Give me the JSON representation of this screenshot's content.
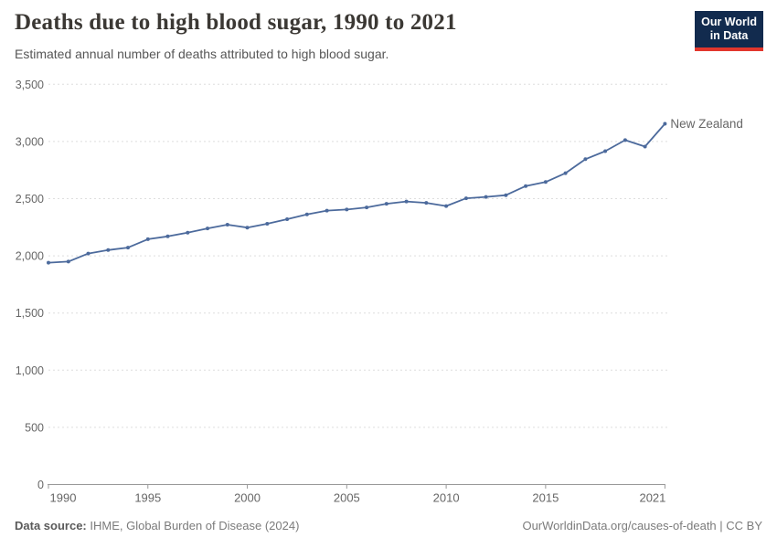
{
  "header": {
    "title": "Deaths due to high blood sugar, 1990 to 2021",
    "subtitle": "Estimated annual number of deaths attributed to high blood sugar."
  },
  "logo": {
    "line1": "Our World",
    "line2": "in Data",
    "bg_color": "#122B4E",
    "stripe_color": "#E2362D"
  },
  "footer": {
    "source_label": "Data source:",
    "source_text": " IHME, Global Burden of Disease (2024)",
    "rights": "OurWorldinData.org/causes-of-death | CC BY"
  },
  "chart_data": {
    "type": "line",
    "title": "Deaths due to high blood sugar, 1990 to 2021",
    "subtitle": "Estimated annual number of deaths attributed to high blood sugar.",
    "xlabel": "",
    "ylabel": "",
    "xlim": [
      1990,
      2021
    ],
    "ylim": [
      0,
      3500
    ],
    "grid": "horizontal-dashed",
    "legend": "end-of-line-label",
    "x": [
      1990,
      1991,
      1992,
      1993,
      1994,
      1995,
      1996,
      1997,
      1998,
      1999,
      2000,
      2001,
      2002,
      2003,
      2004,
      2005,
      2006,
      2007,
      2008,
      2009,
      2010,
      2011,
      2012,
      2013,
      2014,
      2015,
      2016,
      2017,
      2018,
      2019,
      2020,
      2021
    ],
    "series": [
      {
        "name": "New Zealand",
        "color": "#4C6A9C",
        "label_color": "#3E5C9C",
        "values": [
          1940,
          1950,
          2020,
          2050,
          2072,
          2145,
          2170,
          2203,
          2240,
          2272,
          2247,
          2280,
          2320,
          2363,
          2395,
          2405,
          2423,
          2455,
          2475,
          2463,
          2435,
          2503,
          2515,
          2530,
          2610,
          2645,
          2723,
          2845,
          2915,
          3012,
          2955,
          3155
        ]
      }
    ],
    "yticks": [
      {
        "v": 0,
        "label": "0"
      },
      {
        "v": 500,
        "label": "500"
      },
      {
        "v": 1000,
        "label": "1,000"
      },
      {
        "v": 1500,
        "label": "1,500"
      },
      {
        "v": 2000,
        "label": "2,000"
      },
      {
        "v": 2500,
        "label": "2,500"
      },
      {
        "v": 3000,
        "label": "3,000"
      },
      {
        "v": 3500,
        "label": "3,500"
      }
    ],
    "xticks": [
      {
        "v": 1990,
        "label": "1990"
      },
      {
        "v": 1995,
        "label": "1995"
      },
      {
        "v": 2000,
        "label": "2000"
      },
      {
        "v": 2005,
        "label": "2005"
      },
      {
        "v": 2010,
        "label": "2010"
      },
      {
        "v": 2015,
        "label": "2015"
      },
      {
        "v": 2021,
        "label": "2021"
      }
    ]
  }
}
